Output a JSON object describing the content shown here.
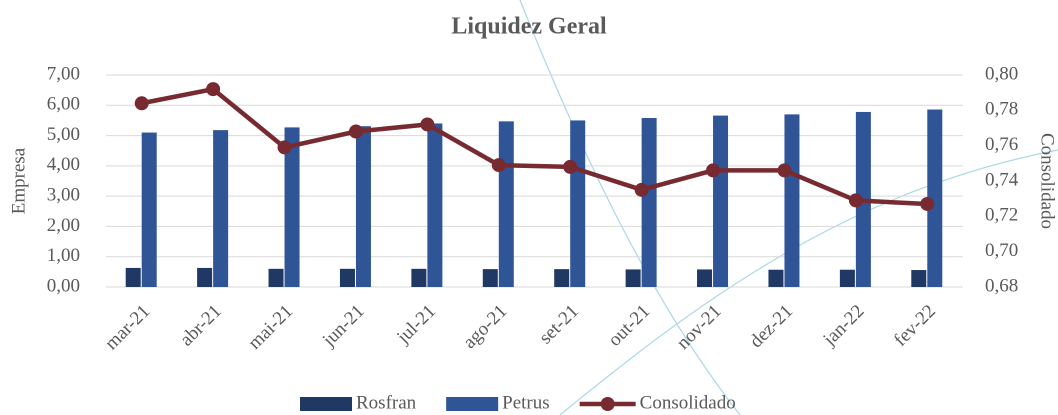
{
  "chart_data": {
    "type": "bar-line",
    "title": "Liquidez Geral",
    "y_label": "Empresa",
    "y2_label": "Consolidado",
    "categories": [
      "mar-21",
      "abr-21",
      "mai-21",
      "jun-21",
      "jul-21",
      "ago-21",
      "set-21",
      "out-21",
      "nov-21",
      "dez-21",
      "jan-22",
      "fev-22"
    ],
    "series": [
      {
        "name": "Rosfran",
        "type": "bar",
        "color": "#203864",
        "values": [
          0.63,
          0.63,
          0.6,
          0.6,
          0.6,
          0.59,
          0.59,
          0.58,
          0.58,
          0.57,
          0.57,
          0.56
        ]
      },
      {
        "name": "Petrus",
        "type": "bar",
        "color": "#2f5597",
        "values": [
          5.1,
          5.18,
          5.27,
          5.31,
          5.4,
          5.47,
          5.5,
          5.58,
          5.66,
          5.7,
          5.78,
          5.86
        ]
      },
      {
        "name": "Consolidado",
        "type": "line",
        "axis": "y2",
        "color": "#772b31",
        "values": [
          0.784,
          0.792,
          0.759,
          0.768,
          0.772,
          0.749,
          0.748,
          0.735,
          0.746,
          0.746,
          0.729,
          0.727
        ]
      }
    ],
    "ylim": [
      0,
      7
    ],
    "yticks": [
      {
        "value": 0,
        "label": "0,00"
      },
      {
        "value": 1,
        "label": "1,00"
      },
      {
        "value": 2,
        "label": "2,00"
      },
      {
        "value": 3,
        "label": "3,00"
      },
      {
        "value": 4,
        "label": "4,00"
      },
      {
        "value": 5,
        "label": "5,00"
      },
      {
        "value": 6,
        "label": "6,00"
      },
      {
        "value": 7,
        "label": "7,00"
      }
    ],
    "y2lim": [
      0.68,
      0.8
    ],
    "y2ticks": [
      {
        "value": 0.68,
        "label": "0,68"
      },
      {
        "value": 0.7,
        "label": "0,70"
      },
      {
        "value": 0.72,
        "label": "0,72"
      },
      {
        "value": 0.74,
        "label": "0,74"
      },
      {
        "value": 0.76,
        "label": "0,76"
      },
      {
        "value": 0.78,
        "label": "0,78"
      },
      {
        "value": 0.8,
        "label": "0,80"
      }
    ],
    "grid": true,
    "legend": "bottom"
  }
}
